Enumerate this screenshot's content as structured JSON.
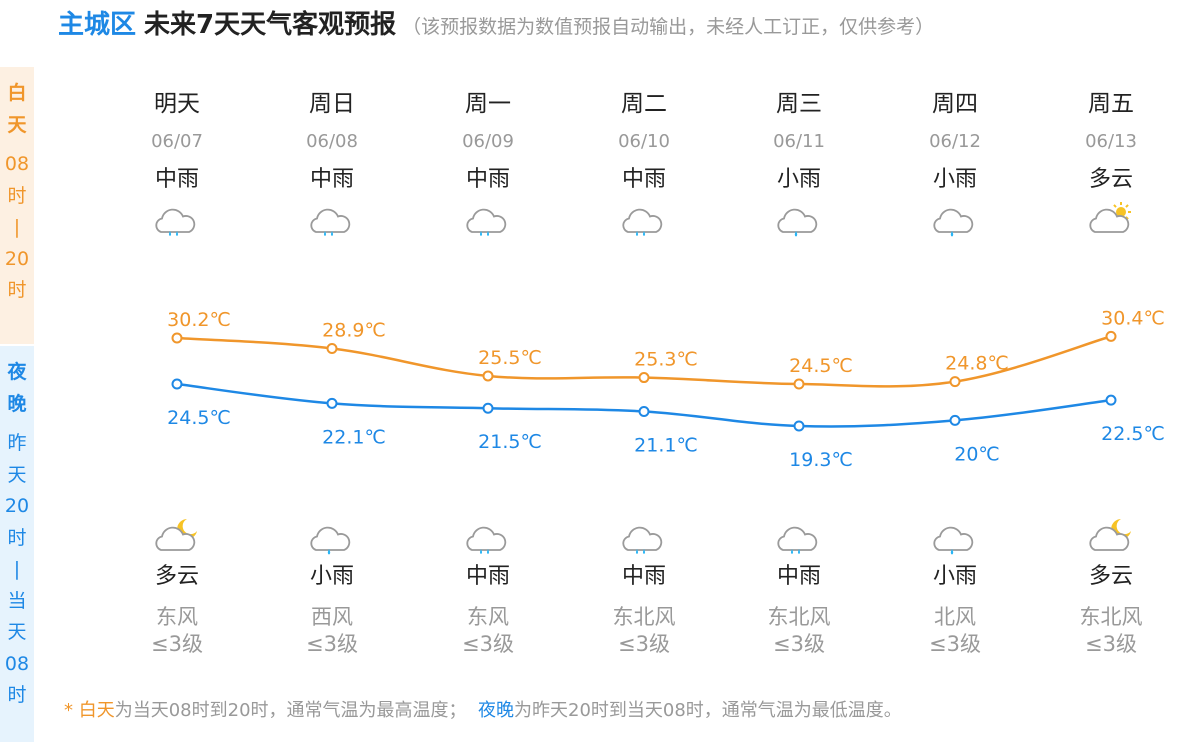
{
  "header": {
    "city": "主城区",
    "title": "未来7天天气客观预报",
    "note": "（该预报数据为数值预报自动输出，未经人工订正，仅供参考）"
  },
  "side": {
    "day_label": [
      "白",
      "天"
    ],
    "day_time": [
      "08",
      "时",
      "|",
      "20",
      "时"
    ],
    "night_label": [
      "夜",
      "晚"
    ],
    "night_time": [
      "昨",
      "天",
      "20",
      "时",
      "|",
      "当",
      "天",
      "08",
      "时"
    ]
  },
  "colors": {
    "day": "#f0962b",
    "night": "#1e88e5",
    "icon_gray": "#9a9a9a",
    "rain": "#29b6f6",
    "sun": "#f7c325",
    "moon": "#f7c325"
  },
  "days": [
    {
      "weekday": "明天",
      "date": "06/07",
      "day_weather": "中雨",
      "day_icon": "moderate-rain-icon",
      "night_weather": "多云",
      "night_icon": "cloudy-night-icon",
      "wind_dir": "东风",
      "wind_scale": "≤3级"
    },
    {
      "weekday": "周日",
      "date": "06/08",
      "day_weather": "中雨",
      "day_icon": "moderate-rain-icon",
      "night_weather": "小雨",
      "night_icon": "light-rain-icon",
      "wind_dir": "西风",
      "wind_scale": "≤3级"
    },
    {
      "weekday": "周一",
      "date": "06/09",
      "day_weather": "中雨",
      "day_icon": "moderate-rain-icon",
      "night_weather": "中雨",
      "night_icon": "moderate-rain-icon",
      "wind_dir": "东风",
      "wind_scale": "≤3级"
    },
    {
      "weekday": "周二",
      "date": "06/10",
      "day_weather": "中雨",
      "day_icon": "moderate-rain-icon",
      "night_weather": "中雨",
      "night_icon": "moderate-rain-icon",
      "wind_dir": "东北风",
      "wind_scale": "≤3级"
    },
    {
      "weekday": "周三",
      "date": "06/11",
      "day_weather": "小雨",
      "day_icon": "light-rain-icon",
      "night_weather": "中雨",
      "night_icon": "moderate-rain-icon",
      "wind_dir": "东北风",
      "wind_scale": "≤3级"
    },
    {
      "weekday": "周四",
      "date": "06/12",
      "day_weather": "小雨",
      "day_icon": "light-rain-icon",
      "night_weather": "小雨",
      "night_icon": "light-rain-icon",
      "wind_dir": "北风",
      "wind_scale": "≤3级"
    },
    {
      "weekday": "周五",
      "date": "06/13",
      "day_weather": "多云",
      "day_icon": "cloudy-day-icon",
      "night_weather": "多云",
      "night_icon": "cloudy-night-icon",
      "wind_dir": "东北风",
      "wind_scale": "≤3级"
    }
  ],
  "chart_data": {
    "type": "line",
    "categories": [
      "06/07",
      "06/08",
      "06/09",
      "06/10",
      "06/11",
      "06/12",
      "06/13"
    ],
    "series": [
      {
        "name": "白天",
        "values": [
          30.2,
          28.9,
          25.5,
          25.3,
          24.5,
          24.8,
          30.4
        ],
        "labels": [
          "30.2℃",
          "28.9℃",
          "25.5℃",
          "25.3℃",
          "24.5℃",
          "24.8℃",
          "30.4℃"
        ]
      },
      {
        "name": "夜晚",
        "values": [
          24.5,
          22.1,
          21.5,
          21.1,
          19.3,
          20,
          22.5
        ],
        "labels": [
          "24.5℃",
          "22.1℃",
          "21.5℃",
          "21.1℃",
          "19.3℃",
          "20℃",
          "22.5℃"
        ]
      }
    ]
  },
  "footer": {
    "star": "* ",
    "day_word": "白天",
    "day_text": "为当天08时到20时，通常气温为最高温度；",
    "night_word": "夜晚",
    "night_text": "为昨天20时到当天08时，通常气温为最低温度。"
  }
}
